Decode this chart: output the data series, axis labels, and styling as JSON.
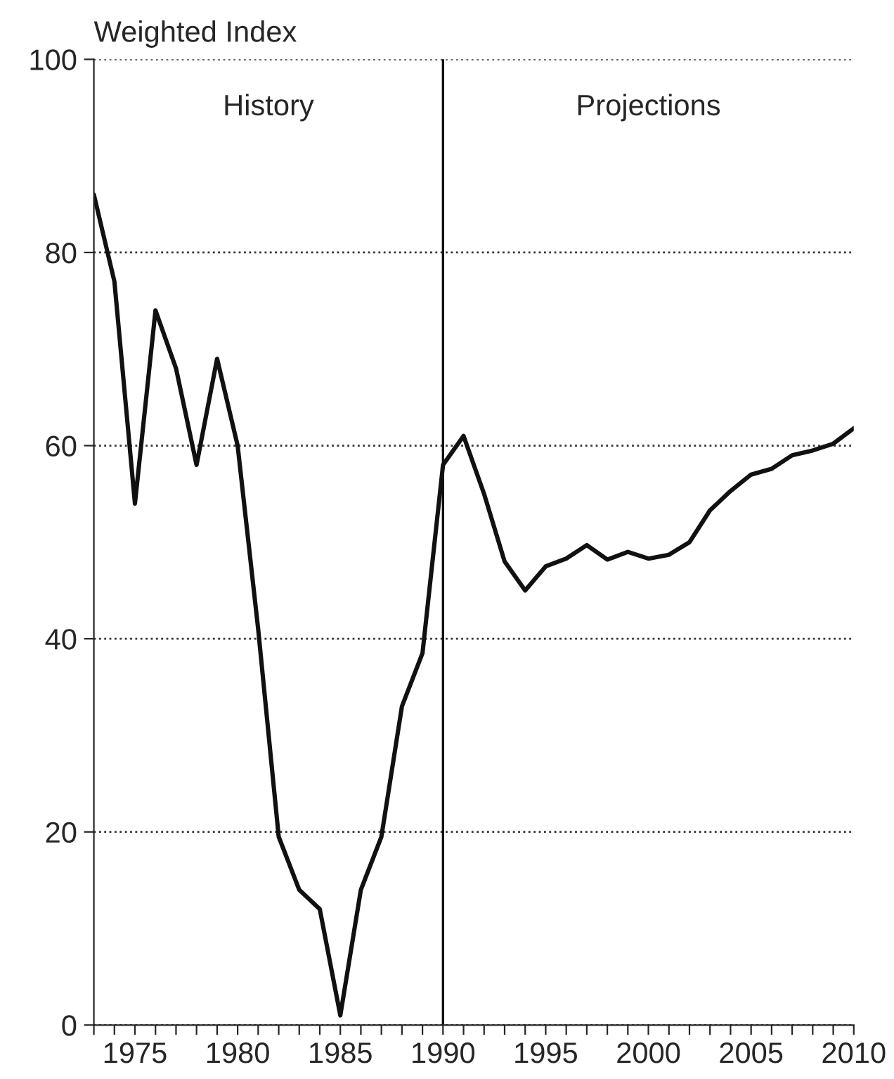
{
  "chart_data": {
    "type": "line",
    "ylabel": "Weighted Index",
    "x": [
      1973,
      1974,
      1975,
      1976,
      1977,
      1978,
      1979,
      1980,
      1981,
      1982,
      1983,
      1984,
      1985,
      1986,
      1987,
      1988,
      1989,
      1990,
      1991,
      1992,
      1993,
      1994,
      1995,
      1996,
      1997,
      1998,
      1999,
      2000,
      2001,
      2002,
      2003,
      2004,
      2005,
      2006,
      2007,
      2008,
      2009,
      2010
    ],
    "series": [
      {
        "color": "#111111",
        "values": [
          86,
          77,
          54,
          74,
          68,
          58,
          69,
          60,
          41,
          19.5,
          14,
          12,
          1,
          14,
          19.5,
          33,
          38.5,
          58,
          61,
          55,
          48,
          45,
          47.5,
          48.3,
          49.7,
          48.2,
          49,
          48.3,
          48.7,
          50,
          53.3,
          55.3,
          57,
          57.6,
          59,
          59.5,
          60.2,
          61.8
        ]
      }
    ],
    "xlim": [
      1973,
      2010
    ],
    "ylim": [
      0,
      100
    ],
    "xticks": [
      {
        "value": 1973,
        "label": null
      },
      {
        "value": 1974,
        "label": null
      },
      1975,
      {
        "value": 1976,
        "label": null
      },
      {
        "value": 1977,
        "label": null
      },
      {
        "value": 1978,
        "label": null
      },
      {
        "value": 1979,
        "label": null
      },
      1980,
      {
        "value": 1981,
        "label": null
      },
      {
        "value": 1982,
        "label": null
      },
      {
        "value": 1983,
        "label": null
      },
      {
        "value": 1984,
        "label": null
      },
      1985,
      {
        "value": 1986,
        "label": null
      },
      {
        "value": 1987,
        "label": null
      },
      {
        "value": 1988,
        "label": null
      },
      {
        "value": 1989,
        "label": null
      },
      1990,
      {
        "value": 1991,
        "label": null
      },
      {
        "value": 1992,
        "label": null
      },
      {
        "value": 1993,
        "label": null
      },
      {
        "value": 1994,
        "label": null
      },
      1995,
      {
        "value": 1996,
        "label": null
      },
      {
        "value": 1997,
        "label": null
      },
      {
        "value": 1998,
        "label": null
      },
      {
        "value": 1999,
        "label": null
      },
      2000,
      {
        "value": 2001,
        "label": null
      },
      {
        "value": 2002,
        "label": null
      },
      {
        "value": 2003,
        "label": null
      },
      {
        "value": 2004,
        "label": null
      },
      2005,
      {
        "value": 2006,
        "label": null
      },
      {
        "value": 2007,
        "label": null
      },
      {
        "value": 2008,
        "label": null
      },
      {
        "value": 2009,
        "label": null
      },
      2010
    ],
    "yticks": [
      0,
      20,
      40,
      60,
      80,
      100
    ],
    "grid": "y",
    "line_style": "solid",
    "marker": "none",
    "legend": false,
    "ref_lines": [
      {
        "axis": "x",
        "value": 1990,
        "color": "#111111",
        "line_style": "solid"
      }
    ],
    "annotations": [
      "History",
      "Projections"
    ]
  }
}
